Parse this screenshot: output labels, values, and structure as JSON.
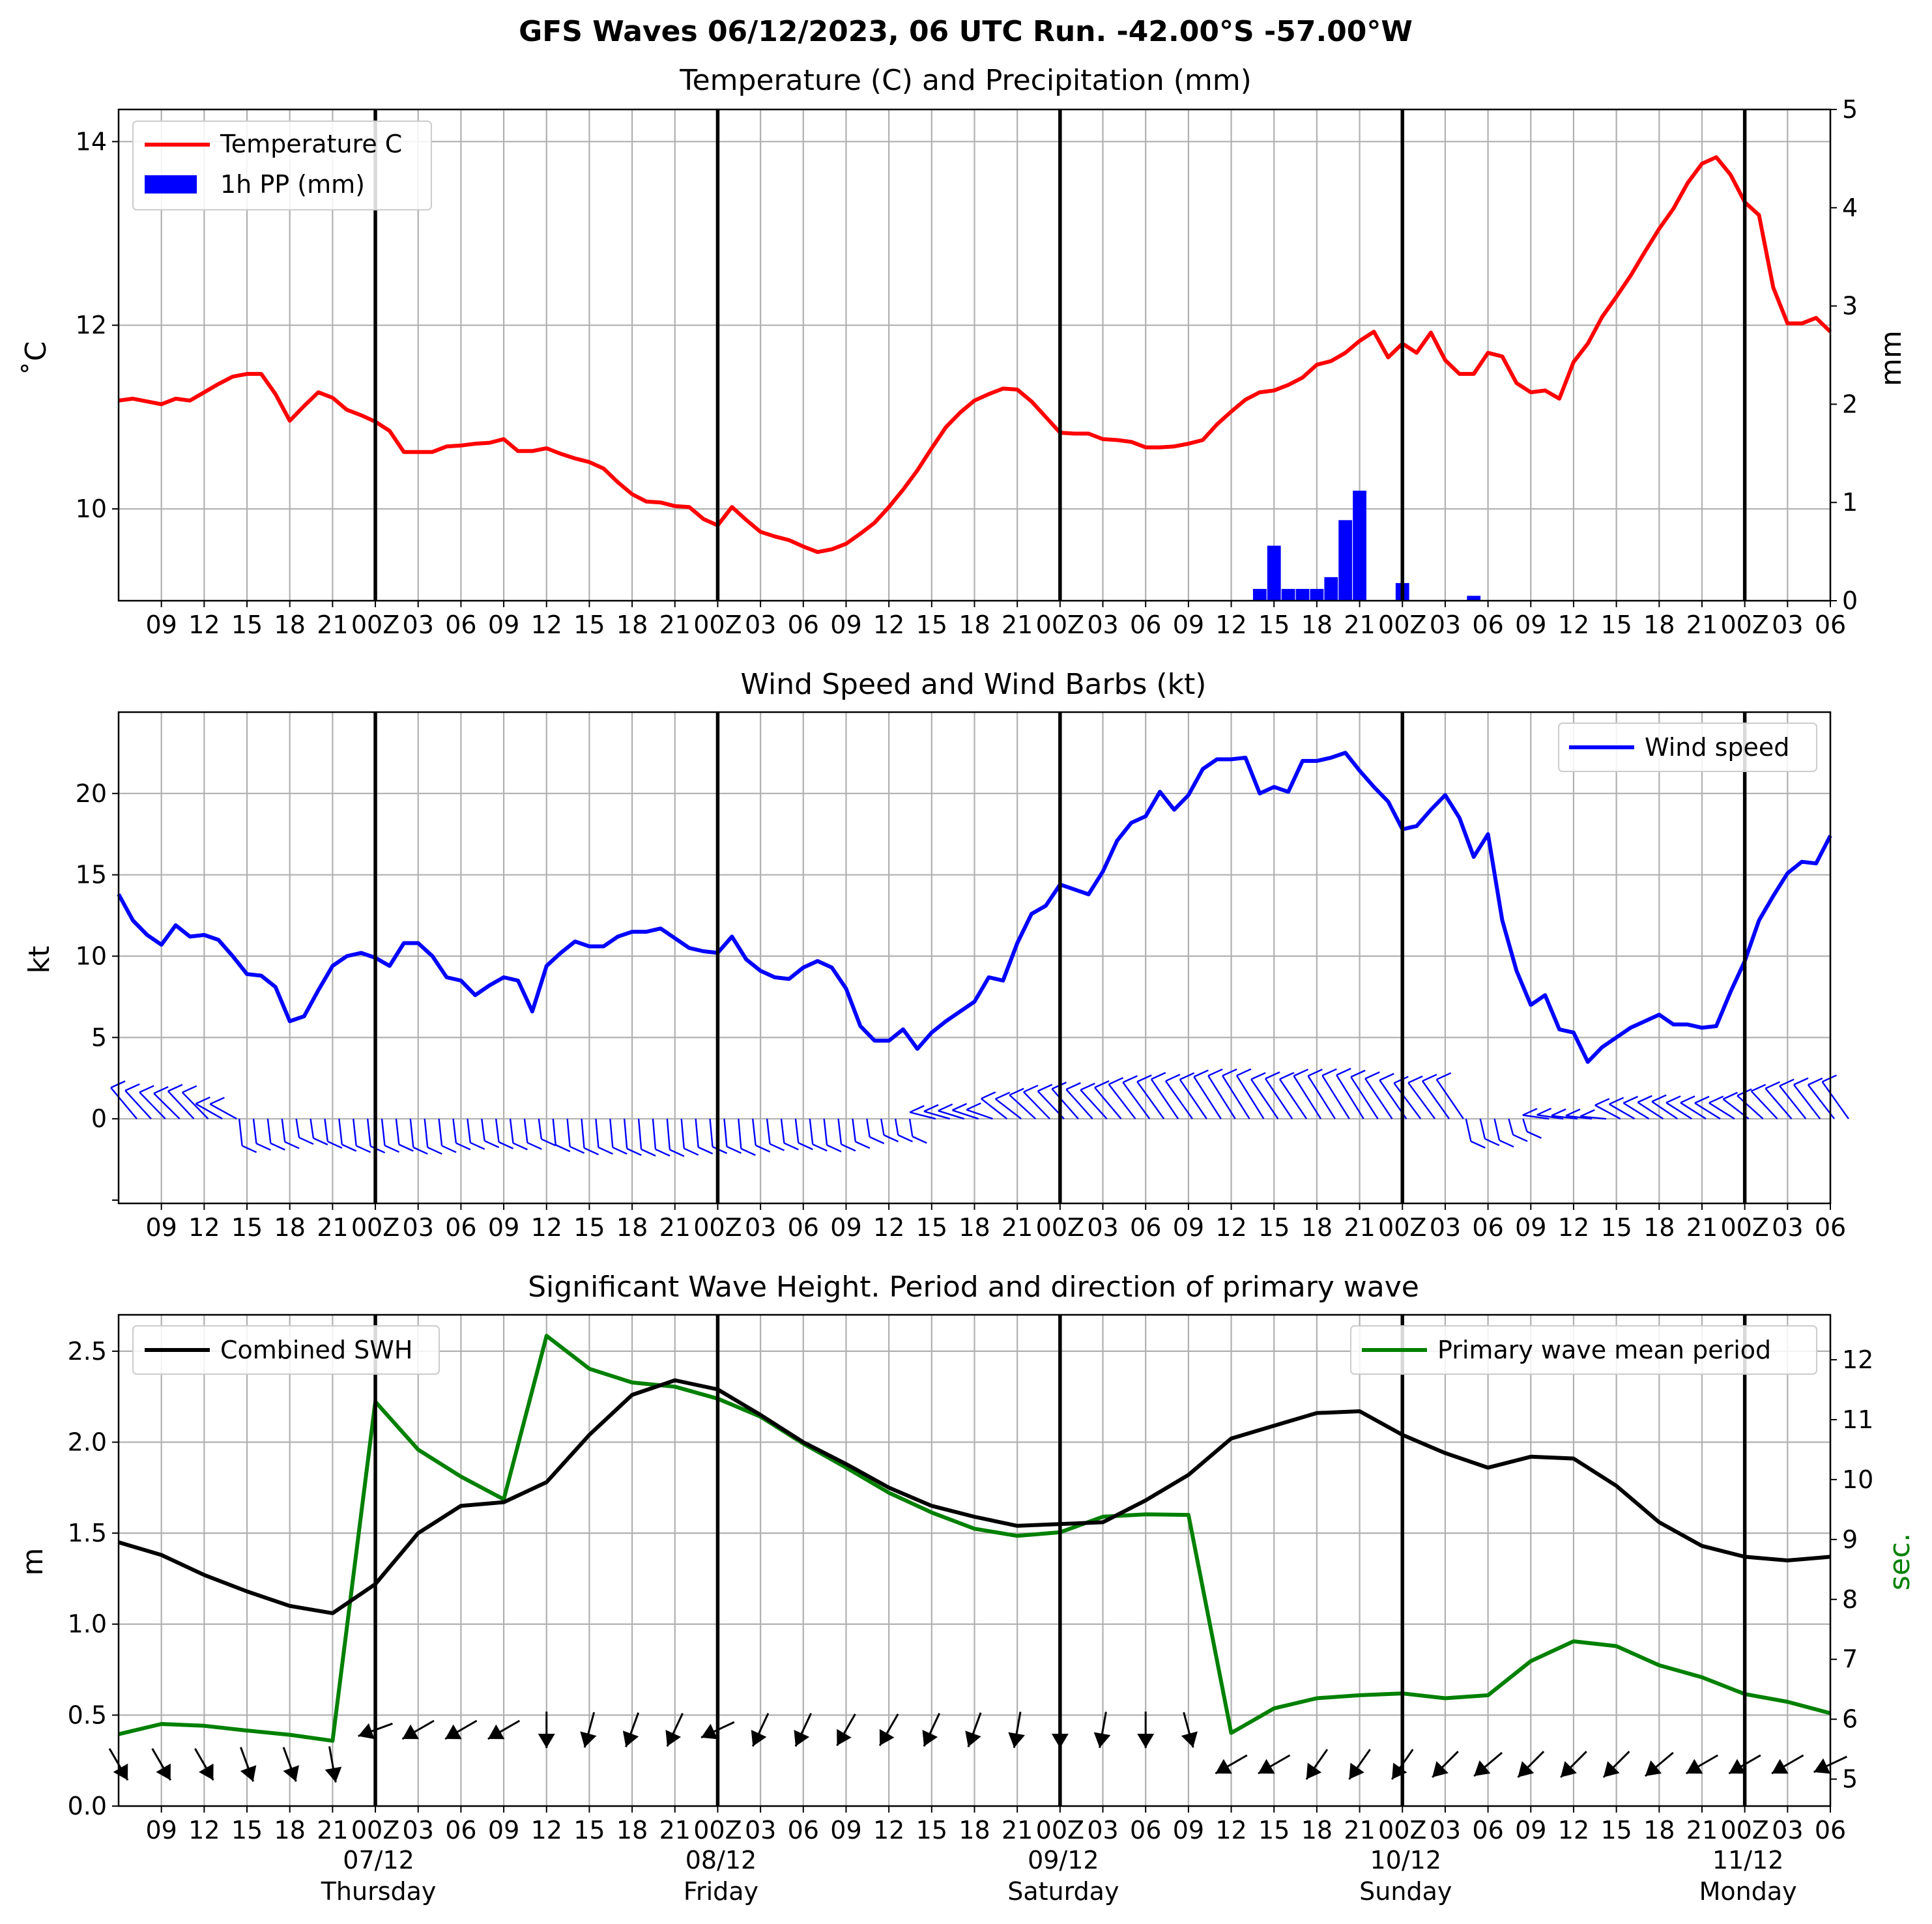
{
  "figure_title": "GFS Waves 06/12/2023, 06 UTC Run. -42.00°S -57.00°W",
  "colors": {
    "temperature": "#ff0000",
    "precipitation": "#0000ff",
    "wind": "#0000ff",
    "swh": "#000000",
    "period": "#008000",
    "grid": "#b0b0b0"
  },
  "x_tick_labels": [
    "09",
    "12",
    "15",
    "18",
    "21",
    "00Z",
    "03",
    "06",
    "09",
    "12",
    "15",
    "18",
    "21",
    "00Z",
    "03",
    "06",
    "09",
    "12",
    "15",
    "18",
    "21",
    "00Z",
    "03",
    "06",
    "09",
    "12",
    "15",
    "18",
    "21",
    "00Z",
    "03",
    "06",
    "09",
    "12",
    "15",
    "18",
    "21",
    "00Z",
    "03",
    "06"
  ],
  "day_labels": [
    {
      "date": "07/12",
      "day": "Thursday"
    },
    {
      "date": "08/12",
      "day": "Friday"
    },
    {
      "date": "09/12",
      "day": "Saturday"
    },
    {
      "date": "10/12",
      "day": "Sunday"
    },
    {
      "date": "11/12",
      "day": "Monday"
    }
  ],
  "chart_data": [
    {
      "type": "line",
      "title": "Temperature (C) and Precipitation (mm)",
      "ylabel": "˚C",
      "y2label": "mm",
      "ylim": [
        9.0,
        14.35
      ],
      "y2lim": [
        0,
        5
      ],
      "yticks": [
        "10",
        "12",
        "14"
      ],
      "y2ticks": [
        "0",
        "1",
        "2",
        "3",
        "4",
        "5"
      ],
      "x_hours_start": 6,
      "x_hours_end": 126,
      "grid": true,
      "legend_position": "top-left",
      "series": [
        {
          "name": "Temperature C",
          "x": [
            6,
            7,
            8,
            9,
            10,
            11,
            12,
            13,
            14,
            15,
            16,
            17,
            18,
            19,
            20,
            21,
            22,
            23,
            24,
            25,
            26,
            27,
            28,
            29,
            30,
            31,
            32,
            33,
            34,
            35,
            36,
            37,
            38,
            39,
            40,
            41,
            42,
            43,
            44,
            45,
            46,
            47,
            48,
            49,
            50,
            51,
            52,
            53,
            54,
            55,
            56,
            57,
            58,
            59,
            60,
            61,
            62,
            63,
            64,
            65,
            66,
            67,
            68,
            69,
            70,
            71,
            72,
            73,
            74,
            75,
            76,
            77,
            78,
            79,
            80,
            81,
            82,
            83,
            84,
            85,
            86,
            87,
            88,
            89,
            90,
            91,
            92,
            93,
            94,
            95,
            96,
            97,
            98,
            99,
            100,
            101,
            102,
            103,
            104,
            105,
            106,
            107,
            108,
            109,
            110,
            111,
            112,
            113,
            114,
            115,
            116,
            117,
            118,
            119,
            120,
            121,
            122,
            123,
            124,
            125,
            126
          ],
          "values": [
            11.18,
            11.2,
            11.17,
            11.14,
            11.2,
            11.18,
            11.27,
            11.36,
            11.44,
            11.47,
            11.47,
            11.25,
            10.96,
            11.12,
            11.27,
            11.21,
            11.08,
            11.02,
            10.95,
            10.85,
            10.62,
            10.62,
            10.62,
            10.68,
            10.69,
            10.71,
            10.72,
            10.76,
            10.63,
            10.63,
            10.66,
            10.6,
            10.55,
            10.51,
            10.44,
            10.29,
            10.16,
            10.08,
            10.07,
            10.03,
            10.02,
            9.89,
            9.82,
            10.02,
            9.88,
            9.75,
            9.7,
            9.66,
            9.59,
            9.53,
            9.56,
            9.62,
            9.73,
            9.85,
            10.02,
            10.21,
            10.42,
            10.66,
            10.89,
            11.05,
            11.18,
            11.25,
            11.31,
            11.3,
            11.17,
            11.0,
            10.83,
            10.82,
            10.82,
            10.76,
            10.75,
            10.73,
            10.67,
            10.67,
            10.68,
            10.71,
            10.75,
            10.92,
            11.06,
            11.19,
            11.27,
            11.29,
            11.35,
            11.43,
            11.57,
            11.61,
            11.7,
            11.83,
            11.93,
            11.65,
            11.8,
            11.7,
            11.92,
            11.62,
            11.47,
            11.47,
            11.7,
            11.66,
            11.37,
            11.27,
            11.29,
            11.2,
            11.6,
            11.8,
            12.09,
            12.31,
            12.54,
            12.8,
            13.05,
            13.27,
            13.55,
            13.76,
            13.83,
            13.64,
            13.34,
            13.2,
            12.41,
            12.02,
            12.02,
            12.08,
            11.93
          ]
        },
        {
          "name": "1h PP (mm)",
          "type": "bar",
          "x": [
            86,
            87,
            88,
            89,
            90,
            91,
            92,
            93,
            94,
            96,
            101
          ],
          "values": [
            0.12,
            0.56,
            0.12,
            0.12,
            0.12,
            0.24,
            0.82,
            1.12,
            0.0,
            0.18,
            0.05
          ]
        }
      ]
    },
    {
      "type": "line",
      "title": "Wind Speed and Wind Barbs (kt)",
      "ylabel": "kt",
      "ylim": [
        -5.2,
        25.0
      ],
      "yticks": [
        "0",
        "5",
        "10",
        "15",
        "20"
      ],
      "grid": true,
      "legend_position": "top-right",
      "series": [
        {
          "name": "Wind speed",
          "x": [
            6,
            7,
            8,
            9,
            10,
            11,
            12,
            13,
            14,
            15,
            16,
            17,
            18,
            19,
            20,
            21,
            22,
            23,
            24,
            25,
            26,
            27,
            28,
            29,
            30,
            31,
            32,
            33,
            34,
            35,
            36,
            37,
            38,
            39,
            40,
            41,
            42,
            43,
            44,
            45,
            46,
            47,
            48,
            49,
            50,
            51,
            52,
            53,
            54,
            55,
            56,
            57,
            58,
            59,
            60,
            61,
            62,
            63,
            64,
            65,
            66,
            67,
            68,
            69,
            70,
            71,
            72,
            73,
            74,
            75,
            76,
            77,
            78,
            79,
            80,
            81,
            82,
            83,
            84,
            85,
            86,
            87,
            88,
            89,
            90,
            91,
            92,
            93,
            94,
            95,
            96,
            97,
            98,
            99,
            100,
            101,
            102,
            103,
            104,
            105,
            106,
            107,
            108,
            109,
            110,
            111,
            112,
            113,
            114,
            115,
            116,
            117,
            118,
            119,
            120,
            121,
            122,
            123,
            124,
            125,
            126
          ],
          "values": [
            13.8,
            12.2,
            11.3,
            10.7,
            11.9,
            11.2,
            11.3,
            11.0,
            10.0,
            8.9,
            8.8,
            8.1,
            6.0,
            6.3,
            7.9,
            9.4,
            10.0,
            10.2,
            9.9,
            9.4,
            10.8,
            10.8,
            10.0,
            8.7,
            8.5,
            7.6,
            8.2,
            8.7,
            8.5,
            6.6,
            9.4,
            10.2,
            10.9,
            10.6,
            10.6,
            11.2,
            11.5,
            11.5,
            11.7,
            11.1,
            10.5,
            10.3,
            10.2,
            11.2,
            9.8,
            9.1,
            8.7,
            8.6,
            9.3,
            9.7,
            9.3,
            8.0,
            5.7,
            4.8,
            4.8,
            5.5,
            4.3,
            5.3,
            6.0,
            6.6,
            7.2,
            8.7,
            8.5,
            10.8,
            12.6,
            13.1,
            14.4,
            14.1,
            13.8,
            15.2,
            17.1,
            18.2,
            18.6,
            20.1,
            19.0,
            19.9,
            21.5,
            22.1,
            22.1,
            22.2,
            20.0,
            20.4,
            20.1,
            22.0,
            22.0,
            22.2,
            22.5,
            21.4,
            20.4,
            19.5,
            17.8,
            18.0,
            19.0,
            19.9,
            18.5,
            16.1,
            17.5,
            12.2,
            9.1,
            7.0,
            7.6,
            5.5,
            5.3,
            3.5,
            4.4,
            5.0,
            5.6,
            6.0,
            6.4,
            5.8,
            5.8,
            5.6,
            5.7,
            7.8,
            9.7,
            12.2,
            13.7,
            15.1,
            15.8,
            15.7,
            17.4
          ]
        }
      ]
    },
    {
      "type": "line",
      "title": "Significant Wave Height. Period and direction of primary wave",
      "ylabel": "m",
      "y2label": "sec.",
      "ylim": [
        0.0,
        2.7
      ],
      "y2lim": [
        4.55,
        12.75
      ],
      "yticks": [
        "0.0",
        "0.5",
        "1.0",
        "1.5",
        "2.0",
        "2.5"
      ],
      "y2ticks": [
        "5",
        "6",
        "7",
        "8",
        "9",
        "10",
        "11",
        "12"
      ],
      "grid": true,
      "series": [
        {
          "name": "Combined SWH",
          "legend_position": "top-left",
          "x": [
            6,
            9,
            12,
            15,
            18,
            21,
            24,
            27,
            30,
            33,
            36,
            39,
            42,
            45,
            48,
            51,
            54,
            57,
            60,
            63,
            66,
            69,
            72,
            75,
            78,
            81,
            84,
            87,
            90,
            93,
            96,
            99,
            102,
            105,
            108,
            111,
            114,
            117,
            120,
            123,
            126
          ],
          "values": [
            1.45,
            1.38,
            1.27,
            1.18,
            1.1,
            1.06,
            1.22,
            1.5,
            1.65,
            1.67,
            1.78,
            2.04,
            2.26,
            2.34,
            2.29,
            2.15,
            2.0,
            1.88,
            1.75,
            1.65,
            1.59,
            1.54,
            1.55,
            1.56,
            1.68,
            1.82,
            2.02,
            2.09,
            2.16,
            2.17,
            2.04,
            1.94,
            1.86,
            1.92,
            1.91,
            1.76,
            1.56,
            1.43,
            1.37,
            1.35,
            1.37
          ]
        },
        {
          "name": "Primary wave mean period",
          "legend_position": "top-right",
          "x": [
            6,
            9,
            12,
            15,
            18,
            21,
            24,
            27,
            30,
            33,
            36,
            39,
            42,
            45,
            48,
            51,
            54,
            57,
            60,
            63,
            66,
            69,
            72,
            75,
            78,
            81,
            84,
            87,
            90,
            93,
            96,
            99,
            102,
            105,
            108,
            111,
            114,
            117,
            120,
            123,
            126
          ],
          "values": [
            5.75,
            5.92,
            5.89,
            5.81,
            5.74,
            5.64,
            11.3,
            10.5,
            10.05,
            9.67,
            12.4,
            11.85,
            11.62,
            11.55,
            11.35,
            11.05,
            10.6,
            10.2,
            9.78,
            9.45,
            9.18,
            9.06,
            9.12,
            9.38,
            9.42,
            9.41,
            5.77,
            6.18,
            6.35,
            6.4,
            6.43,
            6.35,
            6.4,
            6.97,
            7.3,
            7.22,
            6.9,
            6.7,
            6.42,
            6.29,
            6.1
          ]
        },
        {
          "name": "Primary wave direction (arrows)",
          "x": [
            6,
            9,
            12,
            15,
            18,
            21,
            24,
            27,
            30,
            33,
            36,
            39,
            42,
            45,
            48,
            51,
            54,
            57,
            60,
            63,
            66,
            69,
            72,
            75,
            78,
            81,
            84,
            87,
            90,
            93,
            96,
            99,
            102,
            105,
            108,
            111,
            114,
            117,
            120,
            123,
            126
          ],
          "direction_deg": [
            330,
            330,
            330,
            340,
            340,
            350,
            70,
            60,
            60,
            60,
            0,
            15,
            20,
            25,
            65,
            25,
            25,
            30,
            30,
            25,
            20,
            10,
            0,
            10,
            0,
            345,
            60,
            60,
            35,
            35,
            35,
            45,
            50,
            45,
            45,
            45,
            50,
            60,
            60,
            60,
            65
          ]
        }
      ]
    }
  ]
}
